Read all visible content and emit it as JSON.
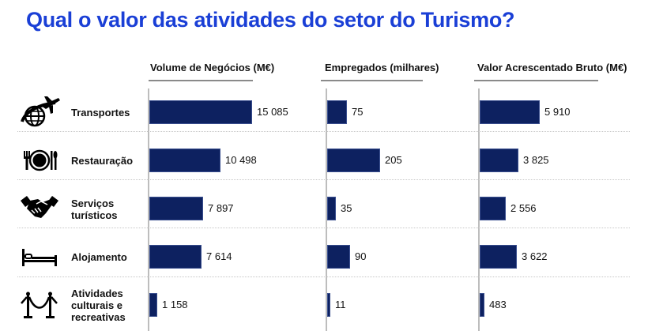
{
  "title": "Qual o valor das atividades do setor do Turismo?",
  "colors": {
    "title": "#1a3fd6",
    "bar": "#0d2160"
  },
  "chart_data": {
    "type": "bar",
    "orientation": "horizontal",
    "title": "Qual o valor das atividades do setor do Turismo?",
    "categories": [
      "Transportes",
      "Restauração",
      "Serviços turísticos",
      "Alojamento",
      "Atividades culturais e recreativas"
    ],
    "category_icons": [
      "globe-airplane-icon",
      "plate-cutlery-icon",
      "handshake-icon",
      "bed-icon",
      "stanchion-rope-icon"
    ],
    "series": [
      {
        "name": "Volume de Negócios (M€)",
        "values": [
          15085,
          10498,
          7897,
          7614,
          1158
        ],
        "labels": [
          "15 085",
          "10 498",
          "7 897",
          "7 614",
          "1 158"
        ]
      },
      {
        "name": "Empregados (milhares)",
        "values": [
          75,
          205,
          35,
          90,
          11
        ],
        "labels": [
          "75",
          "205",
          "35",
          "90",
          "11"
        ]
      },
      {
        "name": "Valor Acrescentado Bruto (M€)",
        "values": [
          5910,
          3825,
          2556,
          3622,
          483
        ],
        "labels": [
          "5 910",
          "3 825",
          "2 556",
          "3 622",
          "483"
        ]
      }
    ],
    "grid": false,
    "legend": "none"
  }
}
